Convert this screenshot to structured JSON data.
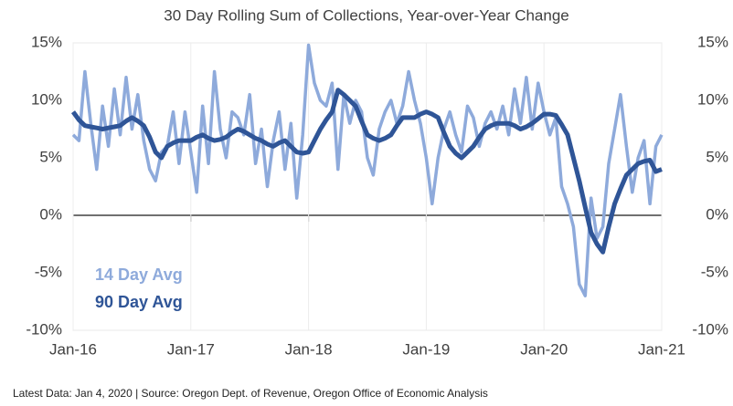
{
  "chart_data": {
    "type": "line",
    "title": "30 Day Rolling Sum of Collections, Year-over-Year Change",
    "source": "Latest Data: Jan 4, 2020 | Source: Oregon Dept. of Revenue, Oregon Office of Economic Analysis",
    "legend": "lower left",
    "x": [
      2016,
      2016.05,
      2016.1,
      2016.15,
      2016.2,
      2016.25,
      2016.3,
      2016.35,
      2016.4,
      2016.45,
      2016.5,
      2016.55,
      2016.6,
      2016.65,
      2016.7,
      2016.75,
      2016.8,
      2016.85,
      2016.9,
      2016.95,
      2017,
      2017.05,
      2017.1,
      2017.15,
      2017.2,
      2017.25,
      2017.3,
      2017.35,
      2017.4,
      2017.45,
      2017.5,
      2017.55,
      2017.6,
      2017.65,
      2017.7,
      2017.75,
      2017.8,
      2017.85,
      2017.9,
      2017.95,
      2018,
      2018.05,
      2018.1,
      2018.15,
      2018.2,
      2018.25,
      2018.3,
      2018.35,
      2018.4,
      2018.45,
      2018.5,
      2018.55,
      2018.6,
      2018.65,
      2018.7,
      2018.75,
      2018.8,
      2018.85,
      2018.9,
      2018.95,
      2019,
      2019.05,
      2019.1,
      2019.15,
      2019.2,
      2019.25,
      2019.3,
      2019.35,
      2019.4,
      2019.45,
      2019.5,
      2019.55,
      2019.6,
      2019.65,
      2019.7,
      2019.75,
      2019.8,
      2019.85,
      2019.9,
      2019.95,
      2020,
      2020.05,
      2020.1,
      2020.15,
      2020.2,
      2020.25,
      2020.3,
      2020.35,
      2020.4,
      2020.45,
      2020.5,
      2020.55,
      2020.6,
      2020.65,
      2020.7,
      2020.75,
      2020.8,
      2020.85,
      2020.9,
      2020.95,
      2021
    ],
    "series": [
      {
        "name": "14 Day Avg",
        "color": "#8eaadb",
        "values": [
          7.0,
          6.5,
          12.5,
          8.0,
          4.0,
          9.5,
          6.0,
          11.0,
          7.0,
          12.0,
          7.5,
          10.5,
          6.5,
          4.0,
          3.0,
          5.5,
          6.0,
          9.0,
          4.5,
          9.0,
          5.5,
          2.0,
          9.5,
          4.5,
          12.5,
          7.5,
          5.0,
          9.0,
          8.5,
          7.0,
          10.5,
          4.5,
          7.5,
          2.5,
          6.5,
          9.0,
          4.0,
          8.0,
          1.5,
          7.0,
          14.8,
          11.5,
          10.0,
          9.5,
          11.5,
          4.0,
          10.5,
          8.0,
          10.0,
          9.0,
          5.0,
          3.5,
          7.5,
          9.0,
          10.0,
          8.0,
          9.5,
          12.5,
          10.0,
          8.0,
          5.0,
          1.0,
          5.0,
          7.5,
          9.0,
          7.0,
          5.5,
          9.5,
          8.5,
          6.0,
          8.0,
          9.0,
          7.5,
          9.5,
          7.0,
          11.0,
          8.0,
          12.0,
          7.5,
          11.5,
          9.0,
          7.0,
          8.5,
          2.5,
          1.0,
          -1.0,
          -6.0,
          -7.0,
          1.5,
          -2.0,
          -1.0,
          4.5,
          7.5,
          10.5,
          6.0,
          2.0,
          5.0,
          6.5,
          1.0,
          6.0,
          7.0
        ]
      },
      {
        "name": "90 Day Avg",
        "color": "#2f5597",
        "values": [
          9.0,
          8.3,
          7.8,
          7.7,
          7.6,
          7.5,
          7.6,
          7.7,
          7.8,
          8.2,
          8.5,
          8.2,
          7.8,
          6.8,
          5.5,
          5.0,
          6.0,
          6.3,
          6.5,
          6.5,
          6.5,
          6.8,
          7.0,
          6.7,
          6.5,
          6.6,
          6.8,
          7.2,
          7.5,
          7.3,
          7.0,
          6.7,
          6.5,
          6.2,
          6.0,
          6.3,
          6.5,
          6.0,
          5.5,
          5.4,
          5.5,
          6.5,
          7.5,
          8.3,
          9.0,
          10.9,
          10.5,
          10.0,
          9.5,
          8.2,
          7.0,
          6.7,
          6.5,
          6.7,
          7.0,
          7.8,
          8.5,
          8.5,
          8.5,
          8.8,
          9.0,
          8.8,
          8.5,
          7.2,
          6.0,
          5.4,
          5.0,
          5.5,
          6.0,
          6.8,
          7.5,
          7.8,
          8.0,
          8.0,
          8.0,
          7.8,
          7.5,
          7.7,
          8.0,
          8.4,
          8.8,
          8.8,
          8.7,
          7.9,
          7.0,
          5.0,
          3.0,
          0.7,
          -1.5,
          -2.5,
          -3.2,
          -1.0,
          1.0,
          2.3,
          3.5,
          4.0,
          4.5,
          4.7,
          4.8,
          3.8,
          4.0
        ]
      }
    ],
    "xlim": [
      2016,
      2021
    ],
    "xticks": [
      {
        "value": 2016,
        "label": "Jan-16"
      },
      {
        "value": 2017,
        "label": "Jan-17"
      },
      {
        "value": 2018,
        "label": "Jan-18"
      },
      {
        "value": 2019,
        "label": "Jan-19"
      },
      {
        "value": 2020,
        "label": "Jan-20"
      },
      {
        "value": 2021,
        "label": "Jan-21"
      }
    ],
    "ylim": [
      -10,
      15
    ],
    "yticks": [
      {
        "value": -10,
        "label": "-10%"
      },
      {
        "value": -5,
        "label": "-5%"
      },
      {
        "value": 0,
        "label": "0%"
      },
      {
        "value": 5,
        "label": "5%"
      },
      {
        "value": 10,
        "label": "10%"
      },
      {
        "value": 15,
        "label": "15%"
      }
    ],
    "y2lim": [
      -10,
      15
    ],
    "y2ticks": [
      {
        "value": -10,
        "label": "-10%"
      },
      {
        "value": -5,
        "label": "-5%"
      },
      {
        "value": 0,
        "label": "0%"
      },
      {
        "value": 5,
        "label": "5%"
      },
      {
        "value": 10,
        "label": "10%"
      },
      {
        "value": 15,
        "label": "15%"
      }
    ]
  }
}
